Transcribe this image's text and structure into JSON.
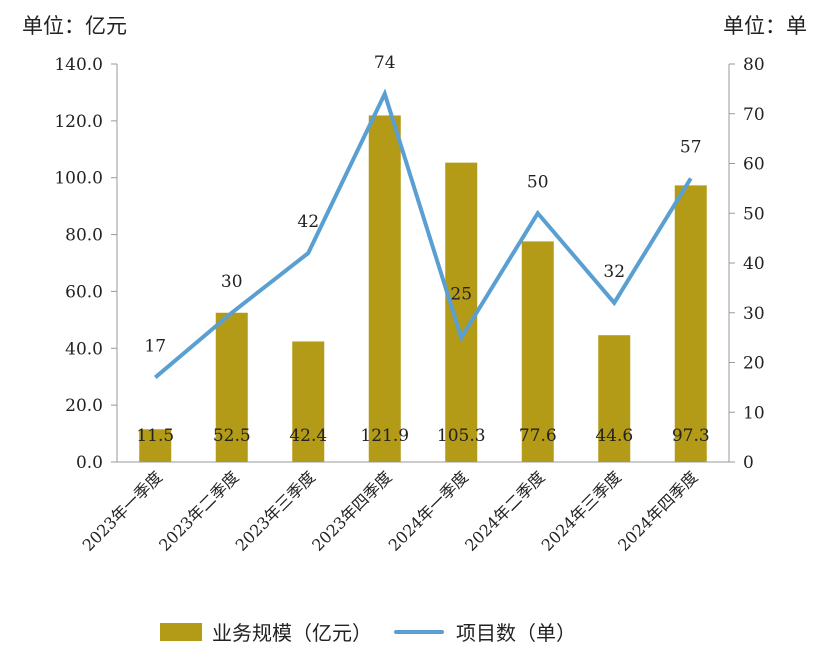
{
  "units": {
    "left": "单位：亿元",
    "right": "单位：单"
  },
  "legend": {
    "bars": "业务规模（亿元）",
    "line": "项目数（单）"
  },
  "colors": {
    "bar": "#b39a17",
    "line": "#5a9fd1"
  },
  "chart_data": {
    "type": "bar",
    "categories": [
      "2023年一季度",
      "2023年二季度",
      "2023年三季度",
      "2023年四季度",
      "2024年一季度",
      "2024年二季度",
      "2024年三季度",
      "2024年四季度"
    ],
    "series": [
      {
        "name": "业务规模（亿元）",
        "type": "bar",
        "axis": "left",
        "values": [
          11.5,
          52.5,
          42.4,
          121.9,
          105.3,
          77.6,
          44.6,
          97.3
        ],
        "labels": [
          "11.5",
          "52.5",
          "42.4",
          "121.9",
          "105.3",
          "77.6",
          "44.6",
          "97.3"
        ]
      },
      {
        "name": "项目数（单）",
        "type": "line",
        "axis": "right",
        "values": [
          17,
          30,
          42,
          74,
          25,
          50,
          32,
          57
        ],
        "labels": [
          "17",
          "30",
          "42",
          "74",
          "25",
          "50",
          "32",
          "57"
        ]
      }
    ],
    "y_left": {
      "range": [
        0,
        140
      ],
      "ticks": [
        "0.0",
        "20.0",
        "40.0",
        "60.0",
        "80.0",
        "100.0",
        "120.0",
        "140.0"
      ]
    },
    "y_right": {
      "range": [
        0,
        80
      ],
      "ticks": [
        "0",
        "10",
        "20",
        "30",
        "40",
        "50",
        "60",
        "70",
        "80"
      ]
    },
    "grid": false,
    "legend_position": "bottom"
  }
}
